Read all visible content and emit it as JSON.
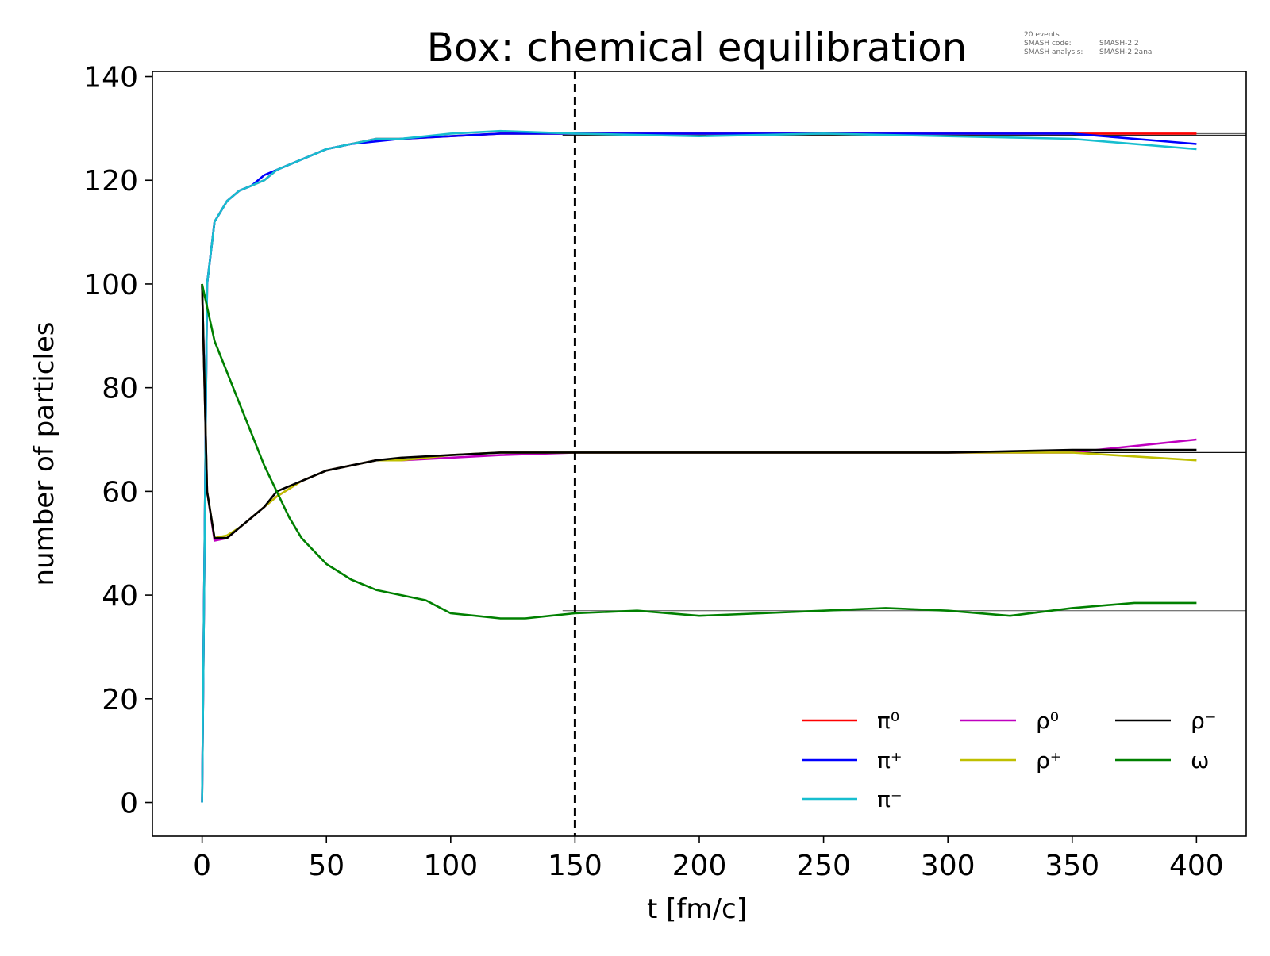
{
  "chart_data": {
    "type": "line",
    "title": "Box: chemical equilibration",
    "info": {
      "events": "20 events",
      "code_label": "SMASH code:",
      "code_value": "SMASH-2.2",
      "analysis_label": "SMASH analysis:",
      "analysis_value": "SMASH-2.2ana"
    },
    "xlabel": "t [fm/c]",
    "ylabel": "number of particles",
    "xlim": [
      -20,
      420
    ],
    "ylim": [
      -6.5,
      141
    ],
    "x_ticks": [
      0,
      50,
      100,
      150,
      200,
      250,
      300,
      350,
      400
    ],
    "y_ticks": [
      0,
      20,
      40,
      60,
      80,
      100,
      120,
      140
    ],
    "grid": false,
    "legend_position": "bottom-right",
    "legend_columns": 3,
    "vline": {
      "x": 150,
      "style": "dashed",
      "color": "#000000"
    },
    "series": [
      {
        "name": "π⁰",
        "color": "#ff0000",
        "x": [
          0,
          2,
          5,
          10,
          15,
          20,
          25,
          30,
          40,
          50,
          60,
          70,
          80,
          100,
          120,
          150,
          200,
          250,
          300,
          350,
          400
        ],
        "values": [
          0,
          100,
          112,
          116,
          118,
          119,
          120,
          122,
          124,
          126,
          127,
          128,
          128,
          128.5,
          129,
          129,
          129,
          129,
          129,
          129,
          129
        ],
        "equilibrium": 129
      },
      {
        "name": "π⁺",
        "color": "#0000ff",
        "x": [
          0,
          2,
          5,
          10,
          15,
          20,
          25,
          30,
          40,
          50,
          60,
          70,
          80,
          100,
          120,
          150,
          200,
          250,
          300,
          350,
          400
        ],
        "values": [
          0,
          100,
          112,
          116,
          118,
          119,
          121,
          122,
          124,
          126,
          127,
          127.5,
          128,
          128.5,
          129,
          129,
          129,
          129,
          129,
          129,
          127
        ],
        "equilibrium": 128.7
      },
      {
        "name": "π⁻",
        "color": "#17becf",
        "x": [
          0,
          2,
          5,
          10,
          15,
          20,
          25,
          30,
          40,
          50,
          60,
          70,
          80,
          100,
          120,
          150,
          200,
          250,
          300,
          350,
          400
        ],
        "values": [
          0,
          100,
          112,
          116,
          118,
          119,
          120,
          122,
          124,
          126,
          127,
          128,
          128,
          129,
          129.5,
          129,
          128.5,
          129,
          128.5,
          128,
          126
        ],
        "equilibrium": 128.7
      },
      {
        "name": "ρ⁰",
        "color": "#bf00bf",
        "x": [
          0,
          2,
          5,
          10,
          15,
          20,
          25,
          30,
          40,
          50,
          60,
          70,
          80,
          100,
          120,
          150,
          200,
          250,
          300,
          350,
          400
        ],
        "values": [
          100,
          60,
          50.5,
          51,
          53,
          55,
          57,
          59,
          62,
          64,
          65,
          66,
          66,
          66.5,
          67,
          67.5,
          67.5,
          67.5,
          67.5,
          67.5,
          70
        ],
        "equilibrium": 67.5
      },
      {
        "name": "ρ⁺",
        "color": "#bfbf00",
        "x": [
          0,
          2,
          5,
          10,
          15,
          20,
          25,
          30,
          40,
          50,
          60,
          70,
          80,
          100,
          120,
          150,
          200,
          250,
          300,
          350,
          400
        ],
        "values": [
          100,
          60,
          51,
          51.5,
          53,
          55,
          57,
          59,
          62,
          64,
          65,
          66,
          66,
          67,
          67.5,
          67.5,
          67.5,
          67.5,
          67.5,
          67.5,
          66
        ],
        "equilibrium": 67.5
      },
      {
        "name": "ρ⁻",
        "color": "#000000",
        "x": [
          0,
          2,
          5,
          10,
          15,
          20,
          25,
          30,
          40,
          50,
          60,
          70,
          80,
          100,
          120,
          150,
          200,
          250,
          300,
          350,
          400
        ],
        "values": [
          100,
          60,
          51,
          51,
          53,
          55,
          57,
          60,
          62,
          64,
          65,
          66,
          66.5,
          67,
          67.5,
          67.5,
          67.5,
          67.5,
          67.5,
          68,
          68
        ],
        "equilibrium": 67.5
      },
      {
        "name": "ω",
        "color": "#008000",
        "x": [
          0,
          5,
          10,
          15,
          20,
          25,
          30,
          35,
          40,
          50,
          60,
          70,
          80,
          90,
          100,
          110,
          120,
          130,
          140,
          150,
          175,
          200,
          225,
          250,
          275,
          300,
          325,
          350,
          375,
          400
        ],
        "values": [
          100,
          89,
          83,
          77,
          71,
          65,
          60,
          55,
          51,
          46,
          43,
          41,
          40,
          39,
          36.5,
          36,
          35.5,
          35.5,
          36,
          36.5,
          37,
          36,
          36.5,
          37,
          37.5,
          37,
          36,
          37.5,
          38.5,
          38.5
        ],
        "equilibrium": 37
      }
    ]
  }
}
